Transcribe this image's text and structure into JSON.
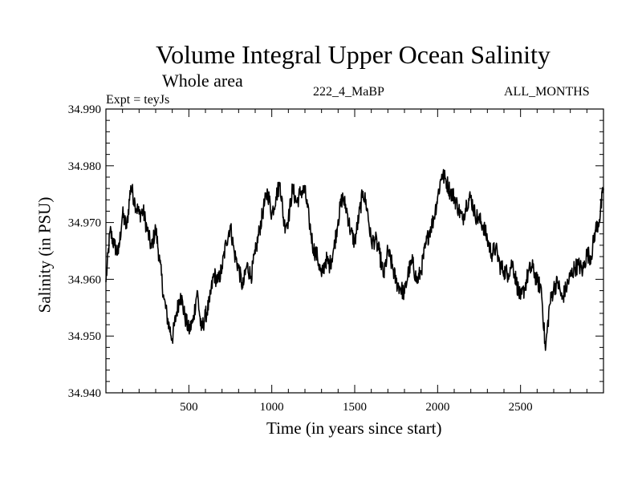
{
  "chart_data": {
    "type": "line",
    "title": "Volume Integral Upper Ocean Salinity",
    "subtitle": "Whole area",
    "experiment_label": "Expt = teyJs",
    "run_label": "222_4_MaBP",
    "period_label": "ALL_MONTHS",
    "xlabel": "Time (in years since start)",
    "ylabel": "Salinity (in PSU)",
    "xlim": [
      0,
      3000
    ],
    "ylim": [
      34.94,
      34.99
    ],
    "x_ticks": [
      500,
      1000,
      1500,
      2000,
      2500
    ],
    "x_tick_labels": [
      "500",
      "1000",
      "1500",
      "2000",
      "2500"
    ],
    "y_ticks": [
      34.94,
      34.95,
      34.96,
      34.97,
      34.98,
      34.99
    ],
    "y_tick_labels": [
      "34.940",
      "34.950",
      "34.960",
      "34.970",
      "34.980",
      "34.990"
    ],
    "grid": false,
    "color": "#000000",
    "series": [
      {
        "name": "Salinity",
        "x": [
          0,
          25,
          50,
          75,
          100,
          125,
          150,
          175,
          200,
          225,
          250,
          275,
          300,
          325,
          350,
          375,
          400,
          425,
          450,
          475,
          500,
          525,
          550,
          575,
          600,
          625,
          650,
          675,
          700,
          725,
          750,
          775,
          800,
          825,
          850,
          875,
          900,
          925,
          950,
          975,
          1000,
          1025,
          1050,
          1075,
          1100,
          1125,
          1150,
          1175,
          1200,
          1225,
          1250,
          1275,
          1300,
          1325,
          1350,
          1375,
          1400,
          1425,
          1450,
          1475,
          1500,
          1525,
          1550,
          1575,
          1600,
          1625,
          1650,
          1675,
          1700,
          1725,
          1750,
          1775,
          1800,
          1825,
          1850,
          1875,
          1900,
          1925,
          1950,
          1975,
          2000,
          2025,
          2050,
          2075,
          2100,
          2125,
          2150,
          2175,
          2200,
          2225,
          2250,
          2275,
          2300,
          2325,
          2350,
          2375,
          2400,
          2425,
          2450,
          2475,
          2500,
          2525,
          2550,
          2575,
          2600,
          2625,
          2650,
          2675,
          2700,
          2725,
          2750,
          2775,
          2800,
          2825,
          2850,
          2875,
          2900,
          2925,
          2950,
          2975,
          3000
        ],
        "values": [
          34.9595,
          34.9685,
          34.966,
          34.9645,
          34.9715,
          34.969,
          34.9765,
          34.9735,
          34.9715,
          34.972,
          34.9685,
          34.9655,
          34.969,
          34.963,
          34.9565,
          34.9525,
          34.9495,
          34.954,
          34.9575,
          34.9535,
          34.951,
          34.9525,
          34.958,
          34.951,
          34.9535,
          34.956,
          34.961,
          34.9595,
          34.962,
          34.9665,
          34.9695,
          34.9645,
          34.962,
          34.9585,
          34.9625,
          34.9605,
          34.9645,
          34.9685,
          34.9725,
          34.9755,
          34.9715,
          34.9745,
          34.977,
          34.9695,
          34.9705,
          34.976,
          34.9735,
          34.9755,
          34.9755,
          34.9705,
          34.9655,
          34.964,
          34.9605,
          34.9635,
          34.9625,
          34.9655,
          34.9705,
          34.9745,
          34.9725,
          34.9685,
          34.9665,
          34.971,
          34.9755,
          34.9725,
          34.9665,
          34.967,
          34.9645,
          34.9605,
          34.965,
          34.9625,
          34.9595,
          34.9585,
          34.9575,
          34.9615,
          34.963,
          34.9595,
          34.9615,
          34.9655,
          34.9685,
          34.9705,
          34.9745,
          34.9785,
          34.9775,
          34.9755,
          34.9745,
          34.9725,
          34.9705,
          34.9735,
          34.9745,
          34.9715,
          34.9705,
          34.9695,
          34.967,
          34.9645,
          34.9655,
          34.9625,
          34.9615,
          34.961,
          34.963,
          34.9595,
          34.9565,
          34.9585,
          34.9615,
          34.962,
          34.9595,
          34.9585,
          34.9475,
          34.9555,
          34.9585,
          34.9595,
          34.9565,
          34.9585,
          34.9605,
          34.962,
          34.9625,
          34.9615,
          34.9645,
          34.964,
          34.9685,
          34.9705,
          34.976
        ]
      }
    ]
  }
}
